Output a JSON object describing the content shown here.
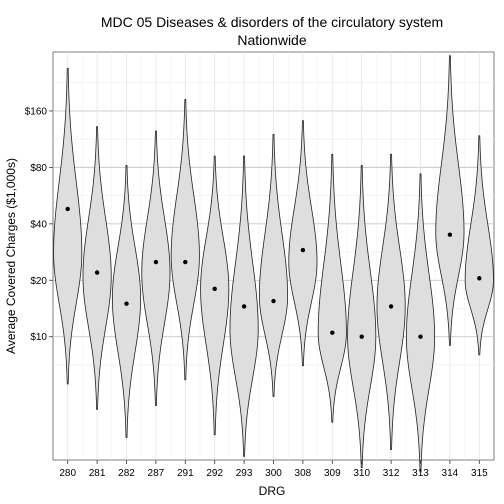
{
  "chart_data": {
    "type": "violin",
    "title": "MDC 05 Diseases & disorders of the circulatory system",
    "subtitle": "Nationwide",
    "xlabel": "DRG",
    "ylabel": "Average Covered Charges ($1,000s)",
    "y_scale": "log",
    "ylim": [
      2.2,
      330
    ],
    "y_ticks": [
      {
        "value": 10,
        "label": "$10"
      },
      {
        "value": 20,
        "label": "$20"
      },
      {
        "value": 40,
        "label": "$40"
      },
      {
        "value": 80,
        "label": "$80"
      },
      {
        "value": 160,
        "label": "$160"
      }
    ],
    "grid": true,
    "categories": [
      "280",
      "281",
      "282",
      "287",
      "291",
      "292",
      "293",
      "300",
      "308",
      "309",
      "310",
      "312",
      "313",
      "314",
      "315"
    ],
    "violins": [
      {
        "drg": "280",
        "min": 5.6,
        "max": 270,
        "mean": 48,
        "mode": 28,
        "width": 1.0
      },
      {
        "drg": "281",
        "min": 4.1,
        "max": 132,
        "mean": 22,
        "mode": 21,
        "width": 1.0
      },
      {
        "drg": "282",
        "min": 2.9,
        "max": 82,
        "mean": 15,
        "mode": 16,
        "width": 1.0
      },
      {
        "drg": "287",
        "min": 4.3,
        "max": 125,
        "mean": 25,
        "mode": 22,
        "width": 1.0
      },
      {
        "drg": "291",
        "min": 5.9,
        "max": 184,
        "mean": 25,
        "mode": 27,
        "width": 1.0
      },
      {
        "drg": "292",
        "min": 3.0,
        "max": 92,
        "mean": 18,
        "mode": 18,
        "width": 1.0
      },
      {
        "drg": "293",
        "min": 2.3,
        "max": 92,
        "mean": 14.5,
        "mode": 11,
        "width": 1.0
      },
      {
        "drg": "300",
        "min": 4.8,
        "max": 120,
        "mean": 15.5,
        "mode": 16.5,
        "width": 1.0
      },
      {
        "drg": "308",
        "min": 7.0,
        "max": 142,
        "mean": 29,
        "mode": 25,
        "width": 1.0
      },
      {
        "drg": "309",
        "min": 3.5,
        "max": 94,
        "mean": 10.5,
        "mode": 10.5,
        "width": 1.0
      },
      {
        "drg": "310",
        "min": 2.0,
        "max": 82,
        "mean": 10,
        "mode": 10,
        "width": 1.0
      },
      {
        "drg": "312",
        "min": 2.5,
        "max": 94,
        "mean": 14.5,
        "mode": 14.5,
        "width": 1.0
      },
      {
        "drg": "313",
        "min": 1.9,
        "max": 74,
        "mean": 10,
        "mode": 10,
        "width": 1.0
      },
      {
        "drg": "314",
        "min": 9.0,
        "max": 315,
        "mean": 35,
        "mode": 36,
        "width": 1.0
      },
      {
        "drg": "315",
        "min": 8.0,
        "max": 118,
        "mean": 20.5,
        "mode": 20,
        "width": 1.0
      }
    ]
  }
}
